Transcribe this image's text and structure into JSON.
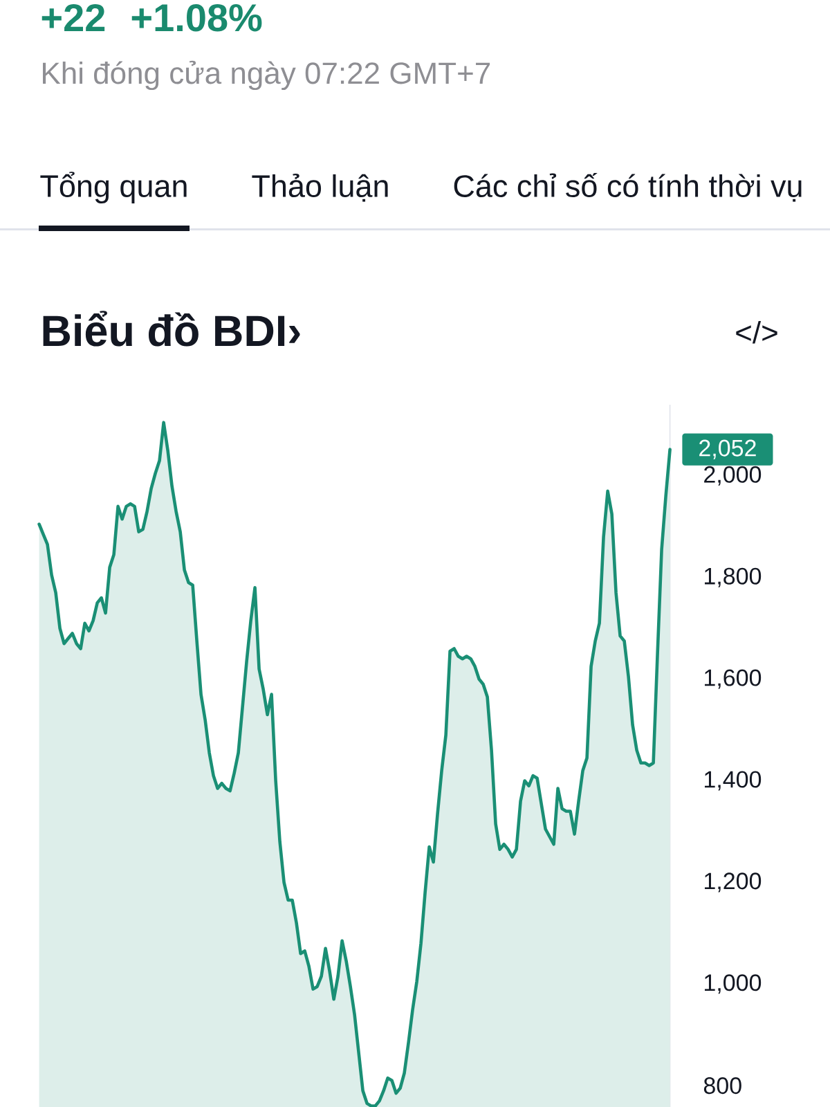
{
  "chart_data": {
    "type": "area",
    "title": "Biểu đồ BDI›",
    "categories": [
      null,
      null,
      null,
      null,
      null,
      null,
      null,
      null,
      null,
      null,
      null,
      null,
      null,
      null,
      null,
      null,
      null,
      null,
      null,
      null,
      null,
      null,
      null,
      null,
      null,
      null,
      null,
      null,
      null,
      null,
      null,
      null,
      null,
      null,
      null,
      null,
      null,
      null,
      null,
      null,
      null,
      null,
      null,
      null,
      null,
      null,
      null,
      null,
      null,
      null,
      null,
      null,
      null,
      null,
      null,
      null,
      null,
      null,
      null,
      null,
      null,
      null,
      null,
      null,
      null,
      null,
      null,
      null,
      null,
      null,
      null,
      null,
      null,
      null,
      null,
      null,
      null,
      null,
      null,
      null,
      null,
      null,
      null,
      null,
      null,
      null,
      null,
      null,
      null,
      null,
      null,
      null,
      null,
      null,
      null,
      null,
      null,
      null,
      null,
      null,
      null,
      null,
      null,
      null,
      null,
      null,
      null,
      null,
      null,
      null,
      null,
      null,
      null,
      null,
      null,
      null,
      null,
      null,
      null,
      null,
      null,
      null,
      null,
      null,
      null,
      null,
      null,
      null,
      null,
      null,
      null,
      null,
      null,
      null,
      null,
      null,
      null,
      null,
      null,
      null,
      null,
      null,
      null,
      null,
      null,
      null,
      null,
      null,
      null,
      null,
      null,
      null,
      null
    ],
    "values": [
      1905,
      1885,
      1865,
      1805,
      1770,
      1700,
      1670,
      1680,
      1690,
      1670,
      1660,
      1710,
      1695,
      1715,
      1750,
      1760,
      1730,
      1820,
      1845,
      1940,
      1915,
      1940,
      1945,
      1940,
      1890,
      1895,
      1930,
      1975,
      2005,
      2030,
      2105,
      2050,
      1980,
      1930,
      1890,
      1815,
      1790,
      1785,
      1675,
      1570,
      1520,
      1455,
      1410,
      1385,
      1395,
      1385,
      1380,
      1415,
      1455,
      1545,
      1635,
      1715,
      1780,
      1620,
      1580,
      1530,
      1570,
      1400,
      1280,
      1200,
      1165,
      1165,
      1120,
      1060,
      1065,
      1035,
      990,
      995,
      1015,
      1070,
      1025,
      970,
      1015,
      1085,
      1045,
      995,
      940,
      865,
      790,
      765,
      760,
      760,
      770,
      790,
      815,
      810,
      785,
      795,
      825,
      885,
      950,
      1005,
      1080,
      1180,
      1270,
      1240,
      1335,
      1420,
      1490,
      1655,
      1660,
      1645,
      1640,
      1645,
      1640,
      1625,
      1600,
      1590,
      1565,
      1460,
      1315,
      1265,
      1275,
      1265,
      1250,
      1265,
      1360,
      1400,
      1390,
      1410,
      1405,
      1355,
      1305,
      1290,
      1275,
      1385,
      1345,
      1340,
      1340,
      1295,
      1360,
      1420,
      1445,
      1625,
      1675,
      1710,
      1880,
      1970,
      1925,
      1770,
      1685,
      1675,
      1605,
      1510,
      1460,
      1435,
      1435,
      1430,
      1435,
      1650,
      1855,
      1960,
      2052
    ],
    "color": "#1a8f75",
    "ylim": [
      758,
      2140
    ],
    "yticks": [
      800,
      {
        "value": 1000,
        "label": "1,000"
      },
      {
        "value": 1200,
        "label": "1,200"
      },
      {
        "value": 1400,
        "label": "1,400"
      },
      {
        "value": 1600,
        "label": "1,600"
      },
      {
        "value": 1800,
        "label": "1,800"
      },
      {
        "value": 2000,
        "label": "2,000"
      }
    ],
    "tick_labels": "y",
    "annotations": [
      "+22",
      "+1.08%",
      "Khi đóng cửa ngày 07:22 GMT+7",
      "Tổng quan",
      "Thảo luận",
      "Các chỉ số có tính thời vụ",
      "</>",
      "2,052"
    ]
  }
}
